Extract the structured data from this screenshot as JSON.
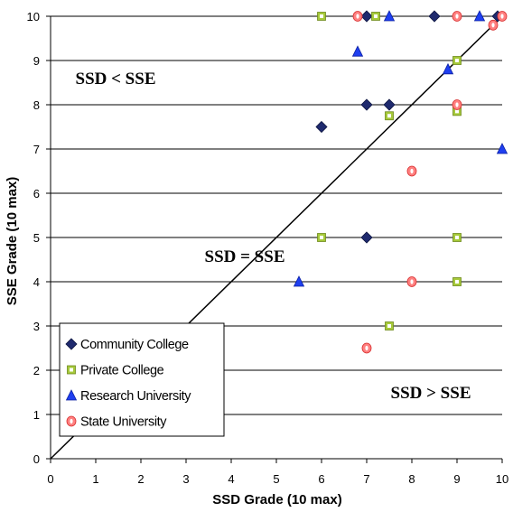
{
  "chart_data": {
    "type": "scatter",
    "xlabel": "SSD Grade (10 max)",
    "ylabel": "SSE Grade (10 max)",
    "xlim": [
      0,
      10
    ],
    "ylim": [
      0,
      10
    ],
    "x_ticks": [
      "0",
      "1",
      "2",
      "3",
      "4",
      "5",
      "6",
      "7",
      "8",
      "9",
      "10"
    ],
    "y_ticks": [
      "0",
      "1",
      "2",
      "3",
      "4",
      "5",
      "6",
      "7",
      "8",
      "9",
      "10"
    ],
    "grid": "horizontal",
    "legend_position": "bottom-left",
    "reference_line": {
      "label": "SSD = SSE",
      "from": [
        0,
        0
      ],
      "to": [
        10,
        10
      ]
    },
    "annotations": [
      {
        "text": "SSD < SSE"
      },
      {
        "text": "SSD = SSE"
      },
      {
        "text": "SSD > SSE"
      }
    ],
    "series": [
      {
        "name": "Community College",
        "marker": "diamond",
        "color": "#1f2a6e",
        "points": [
          [
            6,
            7.5
          ],
          [
            7,
            10
          ],
          [
            7,
            8
          ],
          [
            7.5,
            8
          ],
          [
            8.5,
            10
          ],
          [
            7,
            5
          ],
          [
            9.9,
            10
          ]
        ]
      },
      {
        "name": "Private College",
        "marker": "square",
        "color": "#a6c93a",
        "points": [
          [
            6,
            10
          ],
          [
            7.2,
            10
          ],
          [
            9,
            9
          ],
          [
            7.5,
            7.75
          ],
          [
            9,
            7.85
          ],
          [
            6,
            5
          ],
          [
            9,
            5
          ],
          [
            9,
            4
          ],
          [
            7.5,
            3
          ]
        ]
      },
      {
        "name": "Research University",
        "marker": "triangle",
        "color": "#1f3ff0",
        "points": [
          [
            7.5,
            10
          ],
          [
            9.5,
            10
          ],
          [
            6.8,
            9.2
          ],
          [
            8.8,
            8.8
          ],
          [
            10,
            7
          ],
          [
            5.5,
            4
          ]
        ]
      },
      {
        "name": "State University",
        "marker": "circle",
        "color": "#ff8080",
        "points": [
          [
            6.8,
            10
          ],
          [
            9,
            10
          ],
          [
            10,
            10
          ],
          [
            9.8,
            9.8
          ],
          [
            9,
            8
          ],
          [
            8,
            6.5
          ],
          [
            8,
            4
          ],
          [
            7,
            2.5
          ]
        ]
      }
    ]
  }
}
